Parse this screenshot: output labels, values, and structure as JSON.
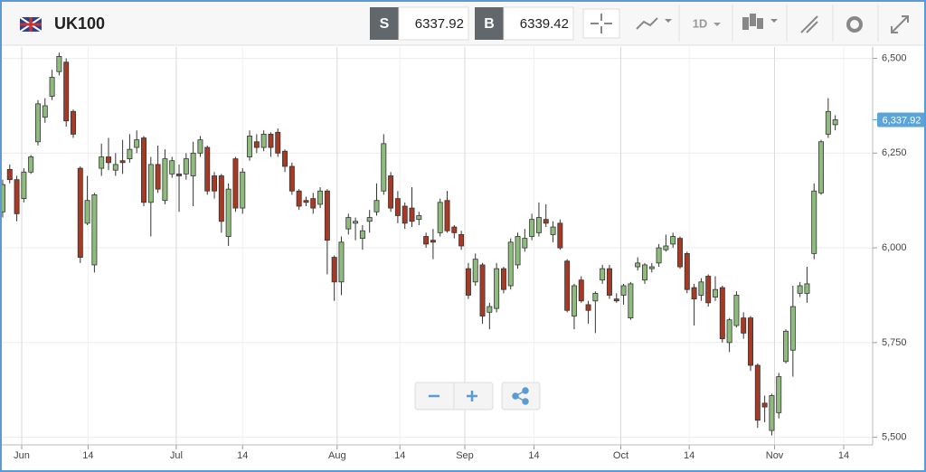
{
  "header": {
    "symbol": "UK100",
    "sell_label": "S",
    "sell_price": "6337.92",
    "buy_label": "B",
    "buy_price": "6339.42",
    "timeframe": "1D"
  },
  "chart_data": {
    "type": "candlestick",
    "up_color": "#8fbc7e",
    "down_color": "#a63a25",
    "open": [
      6095,
      6207,
      6180,
      6130,
      6200,
      6280,
      6345,
      6400,
      6465,
      6490,
      6360,
      6210,
      6065,
      5955,
      6210,
      6240,
      6205,
      6230,
      6235,
      6265,
      6290,
      6120,
      6220,
      6125,
      6195,
      6195,
      6195,
      6190,
      6250,
      6265,
      6190,
      6190,
      6030,
      6235,
      6105,
      6240,
      6280,
      6265,
      6300,
      6305,
      6255,
      6215,
      6150,
      6125,
      6130,
      6115,
      6150,
      5975,
      5910,
      6050,
      6065,
      6025,
      6070,
      6095,
      6150,
      6190,
      6130,
      6110,
      6105,
      6075,
      6030,
      6020,
      6040,
      6125,
      6055,
      6035,
      5945,
      5910,
      5955,
      5830,
      5840,
      5945,
      5900,
      5955,
      6000,
      6030,
      6040,
      6075,
      6035,
      6065,
      5965,
      5820,
      5915,
      5850,
      5860,
      5915,
      5945,
      5865,
      5875,
      5815,
      5950,
      5915,
      5945,
      5960,
      5995,
      6010,
      6025,
      5985,
      5895,
      5875,
      5925,
      5870,
      5895,
      5750,
      5795,
      5815,
      5815,
      5690,
      5590,
      5518,
      5565,
      5700,
      5730,
      5880,
      5880,
      5985,
      6145,
      6300,
      6325
    ],
    "high": [
      6180,
      6220,
      6190,
      6210,
      6245,
      6390,
      6395,
      6470,
      6515,
      6500,
      6365,
      6215,
      6190,
      6145,
      6275,
      6290,
      6250,
      6285,
      6300,
      6310,
      6295,
      6240,
      6270,
      6260,
      6240,
      6220,
      6250,
      6280,
      6295,
      6270,
      6200,
      6195,
      6170,
      6240,
      6210,
      6310,
      6300,
      6310,
      6305,
      6315,
      6260,
      6225,
      6155,
      6135,
      6145,
      6160,
      6155,
      5980,
      6030,
      6090,
      6080,
      6060,
      6100,
      6170,
      6300,
      6200,
      6150,
      6120,
      6160,
      6095,
      6040,
      6050,
      6130,
      6150,
      6060,
      6045,
      5960,
      5985,
      5960,
      5855,
      5960,
      5950,
      6025,
      6040,
      6050,
      6090,
      6120,
      6115,
      6070,
      6075,
      5970,
      5905,
      5925,
      5860,
      5885,
      5955,
      5955,
      5880,
      5905,
      5910,
      5975,
      5960,
      5960,
      6010,
      6035,
      6040,
      6030,
      5990,
      5905,
      5920,
      5930,
      5925,
      5900,
      5815,
      5885,
      5830,
      5820,
      5695,
      5610,
      5615,
      5670,
      5785,
      5900,
      5910,
      5950,
      6170,
      6285,
      6395,
      6350
    ],
    "low": [
      6080,
      6170,
      6070,
      6120,
      6195,
      6270,
      6330,
      6390,
      6455,
      6320,
      6290,
      5960,
      6060,
      5935,
      6190,
      6205,
      6190,
      6195,
      6225,
      6250,
      6110,
      6030,
      6145,
      6115,
      6185,
      6095,
      6180,
      6110,
      6240,
      6140,
      6130,
      6040,
      6005,
      6095,
      6090,
      6230,
      6250,
      6255,
      6240,
      6240,
      6200,
      6140,
      6100,
      6110,
      6090,
      6105,
      5930,
      5860,
      5875,
      6035,
      6020,
      5995,
      6040,
      6085,
      6140,
      6095,
      6065,
      6050,
      6055,
      6060,
      6000,
      5970,
      6030,
      6040,
      6025,
      5995,
      5865,
      5900,
      5800,
      5785,
      5830,
      5880,
      5890,
      5945,
      5990,
      6020,
      6030,
      6055,
      6015,
      5995,
      5830,
      5785,
      5855,
      5800,
      5775,
      5905,
      5865,
      5855,
      5850,
      5810,
      5940,
      5905,
      5935,
      5950,
      5990,
      6000,
      5945,
      5880,
      5795,
      5860,
      5845,
      5860,
      5750,
      5725,
      5790,
      5760,
      5675,
      5525,
      5540,
      5505,
      5550,
      5695,
      5660,
      5870,
      5855,
      5970,
      6140,
      6290,
      6310
    ],
    "close": [
      6167,
      6180,
      6090,
      6200,
      6240,
      6380,
      6375,
      6450,
      6505,
      6335,
      6300,
      5975,
      6125,
      6140,
      6240,
      6225,
      6220,
      6225,
      6260,
      6285,
      6120,
      6220,
      6155,
      6235,
      6230,
      6190,
      6235,
      6250,
      6285,
      6150,
      6150,
      6070,
      6155,
      6105,
      6200,
      6295,
      6265,
      6300,
      6265,
      6250,
      6215,
      6150,
      6110,
      6120,
      6105,
      6150,
      6020,
      5910,
      6015,
      6080,
      6070,
      6045,
      6080,
      6125,
      6275,
      6105,
      6085,
      6065,
      6070,
      6085,
      6010,
      6015,
      6120,
      6045,
      6040,
      6005,
      5875,
      5970,
      5820,
      5845,
      5945,
      5890,
      6015,
      6030,
      6025,
      6075,
      6080,
      6065,
      6055,
      6000,
      5835,
      5900,
      5860,
      5835,
      5880,
      5945,
      5875,
      5860,
      5900,
      5905,
      5960,
      5955,
      5950,
      6000,
      6005,
      6030,
      5950,
      5890,
      5865,
      5910,
      5855,
      5890,
      5760,
      5810,
      5875,
      5775,
      5690,
      5545,
      5580,
      5610,
      5660,
      5780,
      5845,
      5900,
      5905,
      6150,
      6280,
      6360,
      6338
    ],
    "xlim": [
      -0.38,
      123.3
    ],
    "xticks": [
      {
        "value": 2.7,
        "label": "Jun"
      },
      {
        "value": 12.1,
        "label": "14"
      },
      {
        "value": 24.6,
        "label": "Jul"
      },
      {
        "value": 34,
        "label": "14"
      },
      {
        "value": 47.4,
        "label": "Aug"
      },
      {
        "value": 56.3,
        "label": "14"
      },
      {
        "value": 65.5,
        "label": "Sep"
      },
      {
        "value": 75.3,
        "label": "14"
      },
      {
        "value": 87.6,
        "label": "Oct"
      },
      {
        "value": 97.3,
        "label": "14"
      },
      {
        "value": 109.4,
        "label": "Nov"
      },
      {
        "value": 119.2,
        "label": "14"
      }
    ],
    "ylim": [
      5480,
      6530
    ],
    "yticks": [
      {
        "value": 5500,
        "label": "5,500"
      },
      {
        "value": 5750,
        "label": "5,750"
      },
      {
        "value": 6000,
        "label": "6,000"
      },
      {
        "value": 6250,
        "label": "6,250"
      },
      {
        "value": 6500,
        "label": "6,500"
      }
    ],
    "last_price": {
      "value": 6337.92,
      "label": "6,337.92"
    },
    "grid": true
  }
}
